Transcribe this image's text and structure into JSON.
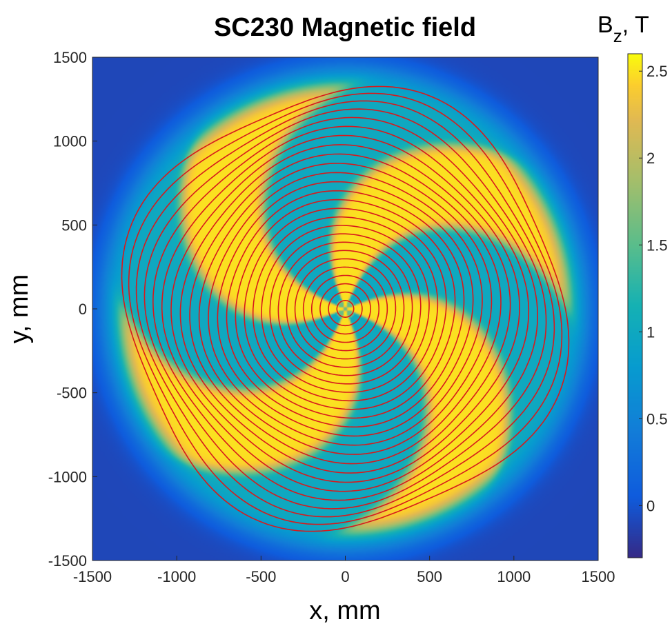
{
  "chart_data": {
    "type": "heatmap",
    "title": "SC230 Magnetic field",
    "xlabel": "x, mm",
    "ylabel": "y, mm",
    "xlim": [
      -1500,
      1500
    ],
    "ylim": [
      -1500,
      1500
    ],
    "xticks": [
      "-1500",
      "-1000",
      "-500",
      "0",
      "500",
      "1000",
      "1500"
    ],
    "xtick_values": [
      -1500,
      -1000,
      -500,
      0,
      500,
      1000,
      1500
    ],
    "yticks": [
      "1500",
      "1000",
      "500",
      "0",
      "-500",
      "-1000",
      "-1500"
    ],
    "ytick_values": [
      1500,
      1000,
      500,
      0,
      -500,
      -1000,
      -1500
    ],
    "colorbar": {
      "title_main": "B",
      "title_sub": "z",
      "title_rest": ", T",
      "range": [
        -0.3,
        2.6
      ],
      "ticks": [
        "2.5",
        "2",
        "1.5",
        "1",
        "0.5",
        "0"
      ],
      "tick_values": [
        2.5,
        2,
        1.5,
        1,
        0.5,
        0
      ],
      "colormap": "parula"
    },
    "field": {
      "sectors": 4,
      "hill_field_T": 2.5,
      "valley_field_T": 1.0,
      "outside_field_T": -0.1,
      "pole_radius_mm": 1330,
      "spiral": "clockwise"
    },
    "orbits": {
      "color": "#d7191c",
      "count": 26,
      "r_min_mm": 50,
      "r_max_mm": 1300
    },
    "grid": false
  }
}
